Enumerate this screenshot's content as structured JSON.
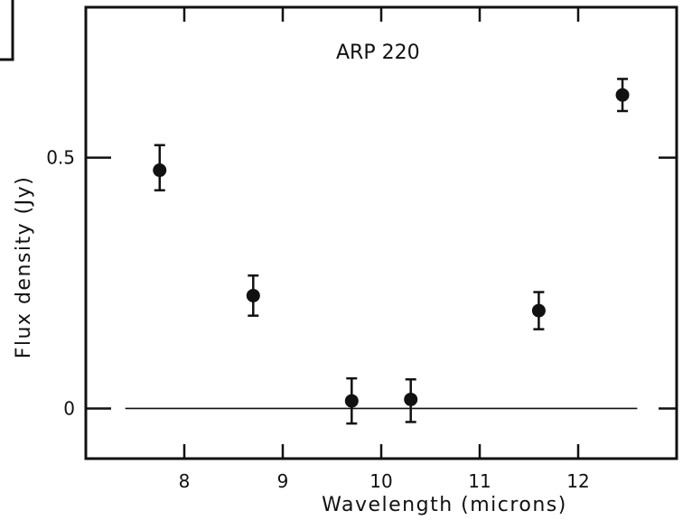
{
  "chart_data": {
    "type": "scatter",
    "title": "",
    "annotation": "ARP 220",
    "xlabel": "Wavelength (microns)",
    "ylabel": "Flux density (Jy)",
    "xlim": [
      7.0,
      13.0
    ],
    "ylim": [
      -0.1,
      0.8
    ],
    "x_ticks": [
      {
        "value": 8,
        "label": "8"
      },
      {
        "value": 9,
        "label": "9"
      },
      {
        "value": 10,
        "label": "10"
      },
      {
        "value": 11,
        "label": "11"
      },
      {
        "value": 12,
        "label": "12"
      }
    ],
    "y_ticks": [
      {
        "value": 0,
        "label": "0"
      },
      {
        "value": 0.5,
        "label": "0.5"
      }
    ],
    "grid": false,
    "reference_line": {
      "y": 0,
      "style": "solid"
    },
    "points": [
      {
        "x": 7.75,
        "y": 0.475,
        "err_low": 0.04,
        "err_high": 0.05
      },
      {
        "x": 8.7,
        "y": 0.225,
        "err_low": 0.04,
        "err_high": 0.04
      },
      {
        "x": 9.7,
        "y": 0.015,
        "err_low": 0.045,
        "err_high": 0.045
      },
      {
        "x": 10.3,
        "y": 0.018,
        "err_low": 0.045,
        "err_high": 0.04
      },
      {
        "x": 11.6,
        "y": 0.195,
        "err_low": 0.037,
        "err_high": 0.037
      },
      {
        "x": 12.45,
        "y": 0.625,
        "err_low": 0.032,
        "err_high": 0.032
      }
    ]
  }
}
